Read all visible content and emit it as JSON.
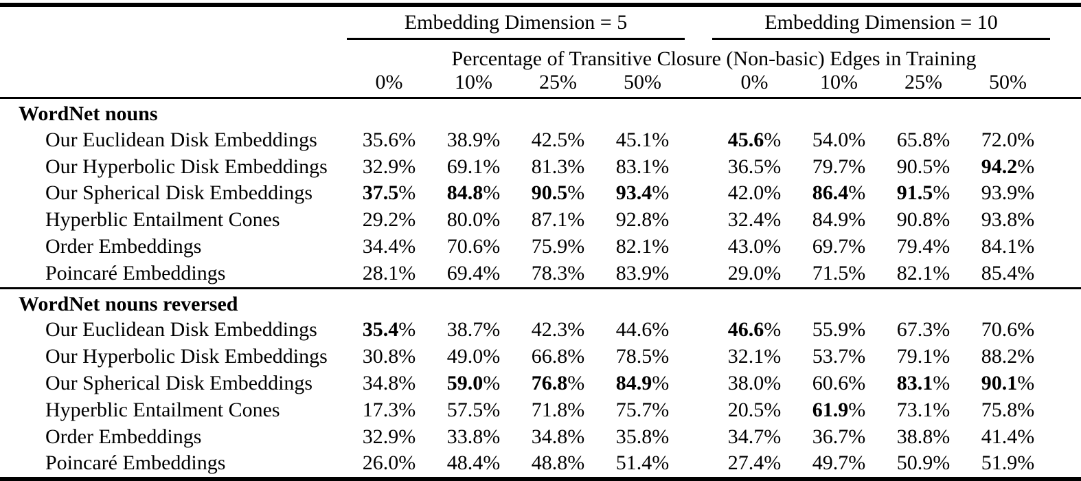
{
  "table": {
    "group_headers": [
      "Embedding Dimension = 5",
      "Embedding Dimension = 10"
    ],
    "subheader": "Percentage of Transitive Closure (Non-basic) Edges in Training",
    "col_headers": [
      "0%",
      "10%",
      "25%",
      "50%",
      "0%",
      "10%",
      "25%",
      "50%"
    ],
    "percent_sign": "%",
    "text_color": "#000000",
    "background_color": "#ffffff",
    "sections": [
      {
        "title": "WordNet nouns",
        "rows": [
          {
            "label": "Our Euclidean Disk Embeddings",
            "cells": [
              {
                "num": "35.6",
                "bold": false
              },
              {
                "num": "38.9",
                "bold": false
              },
              {
                "num": "42.5",
                "bold": false
              },
              {
                "num": "45.1",
                "bold": false
              },
              {
                "num": "45.6",
                "bold": true
              },
              {
                "num": "54.0",
                "bold": false
              },
              {
                "num": "65.8",
                "bold": false
              },
              {
                "num": "72.0",
                "bold": false
              }
            ]
          },
          {
            "label": "Our Hyperbolic Disk Embeddings",
            "cells": [
              {
                "num": "32.9",
                "bold": false
              },
              {
                "num": "69.1",
                "bold": false
              },
              {
                "num": "81.3",
                "bold": false
              },
              {
                "num": "83.1",
                "bold": false
              },
              {
                "num": "36.5",
                "bold": false
              },
              {
                "num": "79.7",
                "bold": false
              },
              {
                "num": "90.5",
                "bold": false
              },
              {
                "num": "94.2",
                "bold": true
              }
            ]
          },
          {
            "label": "Our Spherical Disk Embeddings",
            "cells": [
              {
                "num": "37.5",
                "bold": true
              },
              {
                "num": "84.8",
                "bold": true
              },
              {
                "num": "90.5",
                "bold": true
              },
              {
                "num": "93.4",
                "bold": true
              },
              {
                "num": "42.0",
                "bold": false
              },
              {
                "num": "86.4",
                "bold": true
              },
              {
                "num": "91.5",
                "bold": true
              },
              {
                "num": "93.9",
                "bold": false
              }
            ]
          },
          {
            "label": "Hyperblic Entailment Cones",
            "cells": [
              {
                "num": "29.2",
                "bold": false
              },
              {
                "num": "80.0",
                "bold": false
              },
              {
                "num": "87.1",
                "bold": false
              },
              {
                "num": "92.8",
                "bold": false
              },
              {
                "num": "32.4",
                "bold": false
              },
              {
                "num": "84.9",
                "bold": false
              },
              {
                "num": "90.8",
                "bold": false
              },
              {
                "num": "93.8",
                "bold": false
              }
            ]
          },
          {
            "label": "Order Embeddings",
            "cells": [
              {
                "num": "34.4",
                "bold": false
              },
              {
                "num": "70.6",
                "bold": false
              },
              {
                "num": "75.9",
                "bold": false
              },
              {
                "num": "82.1",
                "bold": false
              },
              {
                "num": "43.0",
                "bold": false
              },
              {
                "num": "69.7",
                "bold": false
              },
              {
                "num": "79.4",
                "bold": false
              },
              {
                "num": "84.1",
                "bold": false
              }
            ]
          },
          {
            "label": "Poincaré Embeddings",
            "cells": [
              {
                "num": "28.1",
                "bold": false
              },
              {
                "num": "69.4",
                "bold": false
              },
              {
                "num": "78.3",
                "bold": false
              },
              {
                "num": "83.9",
                "bold": false
              },
              {
                "num": "29.0",
                "bold": false
              },
              {
                "num": "71.5",
                "bold": false
              },
              {
                "num": "82.1",
                "bold": false
              },
              {
                "num": "85.4",
                "bold": false
              }
            ]
          }
        ]
      },
      {
        "title": "WordNet nouns reversed",
        "rows": [
          {
            "label": "Our Euclidean Disk Embeddings",
            "cells": [
              {
                "num": "35.4",
                "bold": true
              },
              {
                "num": "38.7",
                "bold": false
              },
              {
                "num": "42.3",
                "bold": false
              },
              {
                "num": "44.6",
                "bold": false
              },
              {
                "num": "46.6",
                "bold": true
              },
              {
                "num": "55.9",
                "bold": false
              },
              {
                "num": "67.3",
                "bold": false
              },
              {
                "num": "70.6",
                "bold": false
              }
            ]
          },
          {
            "label": "Our Hyperbolic Disk Embeddings",
            "cells": [
              {
                "num": "30.8",
                "bold": false
              },
              {
                "num": "49.0",
                "bold": false
              },
              {
                "num": "66.8",
                "bold": false
              },
              {
                "num": "78.5",
                "bold": false
              },
              {
                "num": "32.1",
                "bold": false
              },
              {
                "num": "53.7",
                "bold": false
              },
              {
                "num": "79.1",
                "bold": false
              },
              {
                "num": "88.2",
                "bold": false
              }
            ]
          },
          {
            "label": "Our Spherical Disk Embeddings",
            "cells": [
              {
                "num": "34.8",
                "bold": false
              },
              {
                "num": "59.0",
                "bold": true
              },
              {
                "num": "76.8",
                "bold": true
              },
              {
                "num": "84.9",
                "bold": true
              },
              {
                "num": "38.0",
                "bold": false
              },
              {
                "num": "60.6",
                "bold": false
              },
              {
                "num": "83.1",
                "bold": true
              },
              {
                "num": "90.1",
                "bold": true
              }
            ]
          },
          {
            "label": "Hyperblic Entailment Cones",
            "cells": [
              {
                "num": "17.3",
                "bold": false
              },
              {
                "num": "57.5",
                "bold": false
              },
              {
                "num": "71.8",
                "bold": false
              },
              {
                "num": "75.7",
                "bold": false
              },
              {
                "num": "20.5",
                "bold": false
              },
              {
                "num": "61.9",
                "bold": true
              },
              {
                "num": "73.1",
                "bold": false
              },
              {
                "num": "75.8",
                "bold": false
              }
            ]
          },
          {
            "label": "Order Embeddings",
            "cells": [
              {
                "num": "32.9",
                "bold": false
              },
              {
                "num": "33.8",
                "bold": false
              },
              {
                "num": "34.8",
                "bold": false
              },
              {
                "num": "35.8",
                "bold": false
              },
              {
                "num": "34.7",
                "bold": false
              },
              {
                "num": "36.7",
                "bold": false
              },
              {
                "num": "38.8",
                "bold": false
              },
              {
                "num": "41.4",
                "bold": false
              }
            ]
          },
          {
            "label": "Poincaré Embeddings",
            "cells": [
              {
                "num": "26.0",
                "bold": false
              },
              {
                "num": "48.4",
                "bold": false
              },
              {
                "num": "48.8",
                "bold": false
              },
              {
                "num": "51.4",
                "bold": false
              },
              {
                "num": "27.4",
                "bold": false
              },
              {
                "num": "49.7",
                "bold": false
              },
              {
                "num": "50.9",
                "bold": false
              },
              {
                "num": "51.9",
                "bold": false
              }
            ]
          }
        ]
      }
    ]
  }
}
